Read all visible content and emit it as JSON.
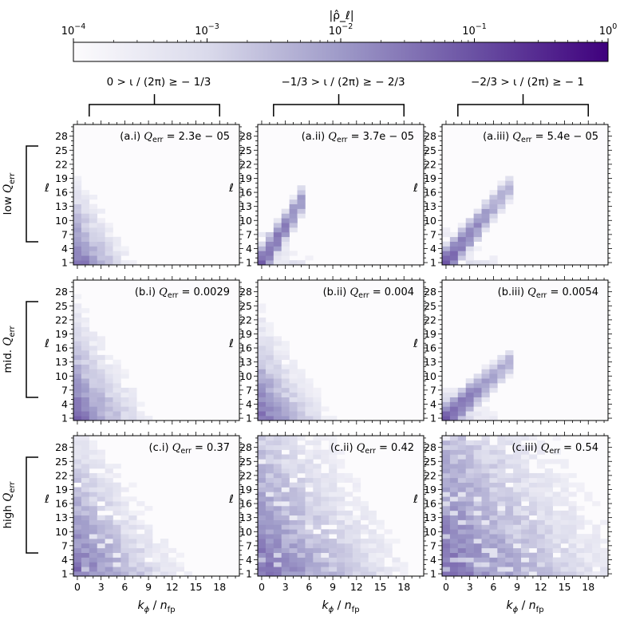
{
  "chart_data": {
    "type": "heatmap",
    "title": "|ρ̂_ℓ|",
    "colorbar": {
      "scale": "log",
      "range": [
        0.0001,
        1
      ],
      "ticks": [
        {
          "base": "10",
          "exp": "−4"
        },
        {
          "base": "10",
          "exp": "−3"
        },
        {
          "base": "10",
          "exp": "−2"
        },
        {
          "base": "10",
          "exp": "−1"
        },
        {
          "base": "10",
          "exp": "0"
        }
      ],
      "colors": [
        "#fcfbfd",
        "#dadaeb",
        "#9e9ac8",
        "#6a51a3",
        "#3f007d"
      ]
    },
    "column_headers": [
      "0 > ι / (2π) ≥ − 1/3",
      "−1/3 > ι / (2π) ≥ − 2/3",
      "−2/3 > ι / (2π) ≥ − 1"
    ],
    "row_headers": [
      {
        "prefix": "low",
        "sym": "Q",
        "sub": "err"
      },
      {
        "prefix": "mid.",
        "sym": "Q",
        "sub": "err"
      },
      {
        "prefix": "high",
        "sym": "Q",
        "sub": "err"
      }
    ],
    "xlabel": {
      "main": "k",
      "sub": "ϕ",
      "sep": " / ",
      "main2": "n",
      "sub2": "fp"
    },
    "ylabel": "ℓ",
    "xticks": [
      0,
      3,
      6,
      9,
      12,
      15,
      18
    ],
    "yticks": [
      1,
      4,
      7,
      10,
      13,
      16,
      19,
      22,
      25,
      28
    ],
    "xlim": [
      -0.5,
      20.5
    ],
    "ylim": [
      0.5,
      30.5
    ],
    "panels": [
      {
        "id": "a.i",
        "label_prefix": "(a.i)",
        "q_err": "2.3e − 05",
        "mode": "diffuse",
        "spread": 0.6
      },
      {
        "id": "a.ii",
        "label_prefix": "(a.ii)",
        "q_err": "3.7e − 05",
        "mode": "diag",
        "slope": 2.6,
        "maxk": 5
      },
      {
        "id": "a.iii",
        "label_prefix": "(a.iii)",
        "q_err": "5.4e − 05",
        "mode": "diag",
        "slope": 2.0,
        "maxk": 8
      },
      {
        "id": "b.i",
        "label_prefix": "(b.i)",
        "q_err": "0.0029",
        "mode": "diffuse",
        "spread": 0.9
      },
      {
        "id": "b.ii",
        "label_prefix": "(b.ii)",
        "q_err": "0.004",
        "mode": "diffuse",
        "spread": 0.8
      },
      {
        "id": "b.iii",
        "label_prefix": "(b.iii)",
        "q_err": "0.0054",
        "mode": "diag",
        "slope": 1.5,
        "maxk": 8
      },
      {
        "id": "c.i",
        "label_prefix": "(c.i)",
        "q_err": "0.37",
        "mode": "noisy",
        "spread": 1.3
      },
      {
        "id": "c.ii",
        "label_prefix": "(c.ii)",
        "q_err": "0.42",
        "mode": "noisy",
        "spread": 1.8
      },
      {
        "id": "c.iii",
        "label_prefix": "(c.iii)",
        "q_err": "0.54",
        "mode": "noisy",
        "spread": 2.2
      }
    ]
  }
}
